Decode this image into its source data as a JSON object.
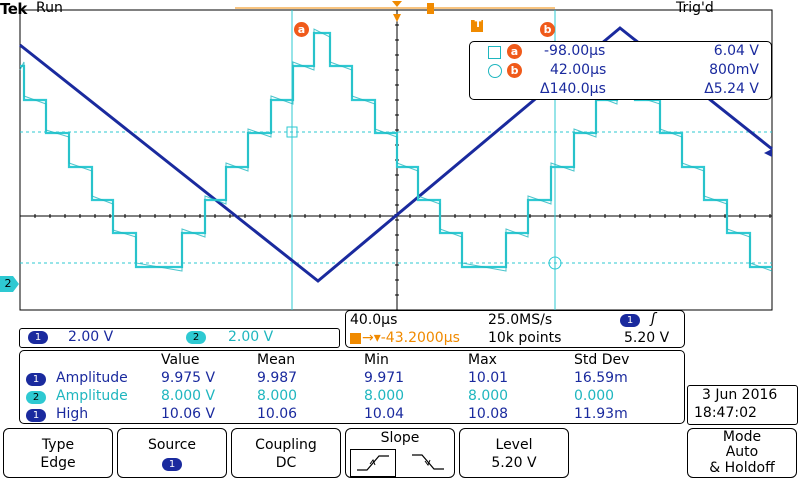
{
  "header": {
    "brand": "Tek",
    "status": "Run",
    "trigger_status": "Trig'd"
  },
  "cursor_labels": {
    "a": "a",
    "b": "b"
  },
  "cursor_readout": {
    "a_time": "-98.00µs",
    "a_value": "6.04 V",
    "b_time": "42.00µs",
    "b_value": "800mV",
    "delta_time": "Δ140.0µs",
    "delta_value": "Δ5.24 V"
  },
  "channel_scales": {
    "ch1_label": "1",
    "ch1_scale": "2.00 V",
    "ch2_label": "2",
    "ch2_scale": "2.00 V"
  },
  "timebase": {
    "time_div": "40.0µs",
    "sample_rate": "25.0MS/s",
    "trigger_position": "→▾-43.2000µs",
    "record_length": "10k points",
    "trigger_source": "1",
    "trigger_slope_glyph": "ʃ",
    "trigger_level": "5.20 V"
  },
  "measurements": {
    "headers": [
      "Value",
      "Mean",
      "Min",
      "Max",
      "Std Dev"
    ],
    "rows": [
      {
        "channel": "1",
        "name": "Amplitude",
        "values": [
          "9.975 V",
          "9.987",
          "9.971",
          "10.01",
          "16.59m"
        ]
      },
      {
        "channel": "2",
        "name": "Amplitude",
        "values": [
          "8.000 V",
          "8.000",
          "8.000",
          "8.000",
          "0.000"
        ]
      },
      {
        "channel": "1",
        "name": "High",
        "values": [
          "10.06 V",
          "10.06",
          "10.04",
          "10.08",
          "11.93m"
        ]
      }
    ]
  },
  "datetime": {
    "date": "3 Jun 2016",
    "time": "18:47:02"
  },
  "softkeys": [
    {
      "line1": "Type",
      "line2": "Edge"
    },
    {
      "line1": "Source",
      "line2": "1"
    },
    {
      "line1": "Coupling",
      "line2": "DC"
    },
    {
      "line1": "Slope",
      "line2": ""
    },
    {
      "line1": "Level",
      "line2": "5.20 V"
    },
    {
      "line1": "Mode",
      "line2": "Auto",
      "line3": "& Holdoff"
    }
  ],
  "markers": {
    "ch2_ground": "2",
    "trigger_T": "T"
  },
  "colors": {
    "ch1": "#1a2a9e",
    "ch2": "#2ec9d2",
    "cursor": "#2ec9d2",
    "accent": "#f08a00",
    "cursor_badge": "#f05a1a"
  }
}
